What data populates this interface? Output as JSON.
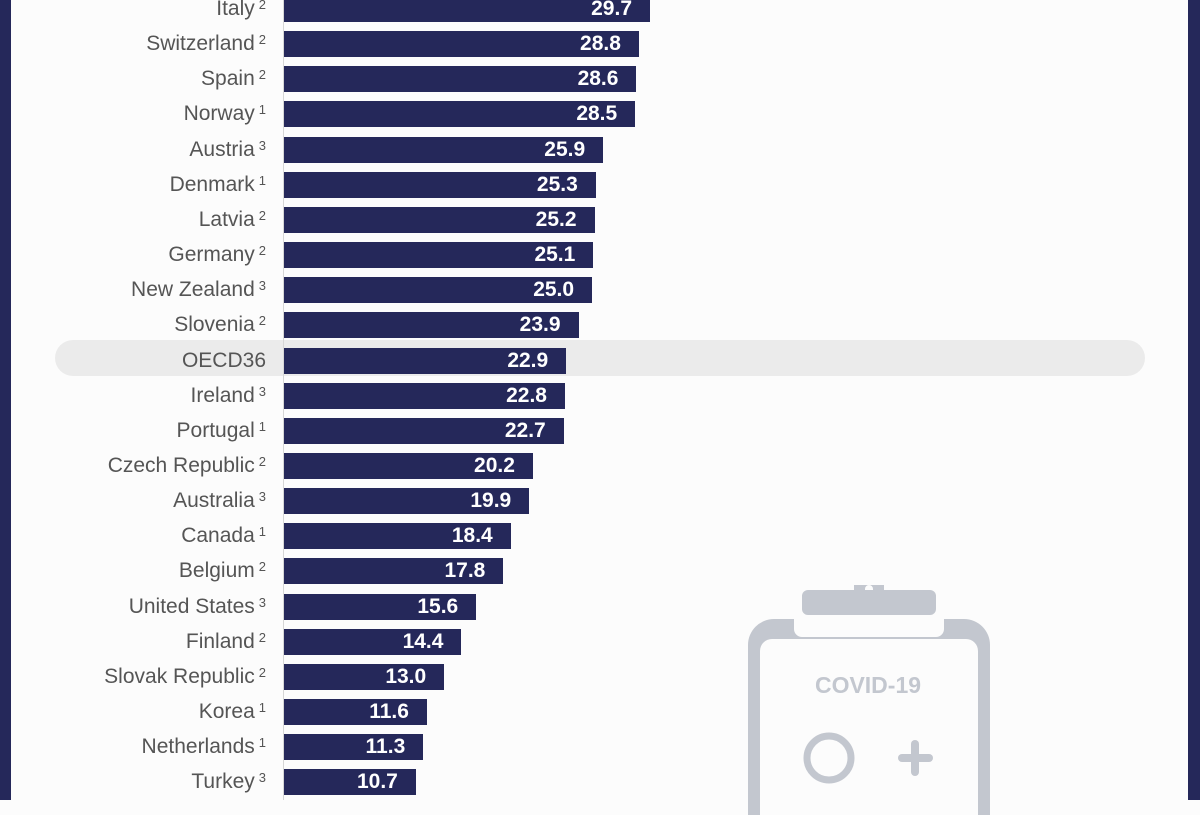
{
  "chart_data": {
    "type": "bar",
    "orientation": "horizontal",
    "categories": [
      "Italy",
      "Switzerland",
      "Spain",
      "Norway",
      "Austria",
      "Denmark",
      "Latvia",
      "Germany",
      "New Zealand",
      "Slovenia",
      "OECD36",
      "Ireland",
      "Portugal",
      "Czech Republic",
      "Australia",
      "Canada",
      "Belgium",
      "United States",
      "Finland",
      "Slovak Republic",
      "Korea",
      "Netherlands",
      "Turkey"
    ],
    "footnotes": [
      "2",
      "2",
      "2",
      "1",
      "3",
      "1",
      "2",
      "2",
      "3",
      "2",
      "",
      "3",
      "1",
      "2",
      "3",
      "1",
      "2",
      "3",
      "2",
      "2",
      "1",
      "1",
      "3"
    ],
    "values": [
      29.7,
      28.8,
      28.6,
      28.5,
      25.9,
      25.3,
      25.2,
      25.1,
      25.0,
      23.9,
      22.9,
      22.8,
      22.7,
      20.2,
      19.9,
      18.4,
      17.8,
      15.6,
      14.4,
      13.0,
      11.6,
      11.3,
      10.7
    ],
    "value_labels": [
      "29.7",
      "28.8",
      "28.6",
      "28.5",
      "25.9",
      "25.3",
      "25.2",
      "25.1",
      "25.0",
      "23.9",
      "22.9",
      "22.8",
      "22.7",
      "20.2",
      "19.9",
      "18.4",
      "17.8",
      "15.6",
      "14.4",
      "13.0",
      "11.6",
      "11.3",
      "10.7"
    ],
    "highlighted": "OECD36",
    "bar_color": "#25285a",
    "highlight_color": "#ebebeb",
    "title": "",
    "xlabel": "",
    "ylabel": "",
    "grid": false,
    "legend": null
  },
  "decoration": {
    "clipboard_text": "COVID-19",
    "icon_color": "#c3c7cf"
  }
}
